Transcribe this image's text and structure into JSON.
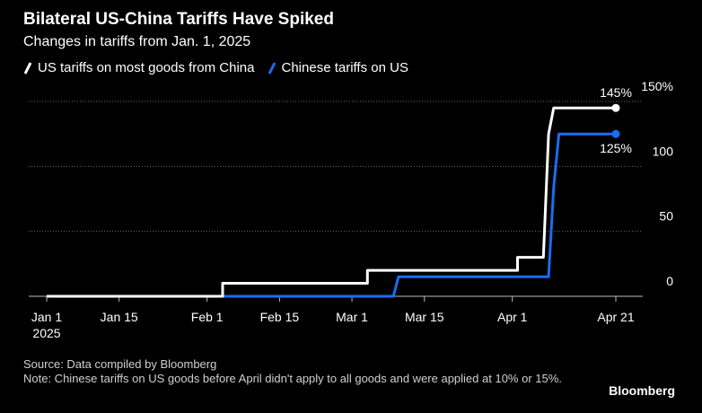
{
  "header": {
    "title": "Bilateral US-China Tariffs Have Spiked",
    "subtitle": "Changes in tariffs from Jan. 1, 2025"
  },
  "footer": {
    "source": "Source: Data compiled by Bloomberg",
    "note": "Note: Chinese tariffs on US goods before April didn't apply to all goods and were applied at 10% or 15%.",
    "brand": "Bloomberg"
  },
  "chart_data": {
    "type": "line",
    "title": "Bilateral US-China Tariffs Have Spiked",
    "subtitle": "Changes in tariffs from Jan. 1, 2025",
    "y_ticks": [
      {
        "value": 150,
        "label": "150%"
      },
      {
        "value": 100,
        "label": "100"
      },
      {
        "value": 50,
        "label": "50"
      },
      {
        "value": 0,
        "label": "0"
      }
    ],
    "x_ticks": [
      {
        "date": "2025-01-01",
        "label": "Jan 1",
        "sublabel": "2025"
      },
      {
        "date": "2025-01-15",
        "label": "Jan 15"
      },
      {
        "date": "2025-02-01",
        "label": "Feb 1"
      },
      {
        "date": "2025-02-15",
        "label": "Feb 15"
      },
      {
        "date": "2025-03-01",
        "label": "Mar 1"
      },
      {
        "date": "2025-03-15",
        "label": "Mar 15"
      },
      {
        "date": "2025-04-01",
        "label": "Apr 1"
      },
      {
        "date": "2025-04-21",
        "label": "Apr 21"
      }
    ],
    "x_range": [
      "2025-01-01",
      "2025-04-21"
    ],
    "ylim": [
      0,
      150
    ],
    "grid": true,
    "legend_position": "top-left",
    "series": [
      {
        "name": "US tariffs on most goods from China",
        "color": "#ffffff",
        "end_label": "145%",
        "points": [
          {
            "x": "2025-01-01",
            "y": 0
          },
          {
            "x": "2025-02-04",
            "y": 0
          },
          {
            "x": "2025-02-04",
            "y": 10
          },
          {
            "x": "2025-03-04",
            "y": 10
          },
          {
            "x": "2025-03-04",
            "y": 20
          },
          {
            "x": "2025-04-02",
            "y": 20
          },
          {
            "x": "2025-04-02",
            "y": 30
          },
          {
            "x": "2025-04-07",
            "y": 30
          },
          {
            "x": "2025-04-08",
            "y": 125
          },
          {
            "x": "2025-04-09",
            "y": 145
          },
          {
            "x": "2025-04-21",
            "y": 145
          }
        ]
      },
      {
        "name": "Chinese tariffs on US",
        "color": "#1c6cf0",
        "end_label": "125%",
        "points": [
          {
            "x": "2025-01-01",
            "y": 0
          },
          {
            "x": "2025-03-09",
            "y": 0
          },
          {
            "x": "2025-03-10",
            "y": 15
          },
          {
            "x": "2025-04-08",
            "y": 15
          },
          {
            "x": "2025-04-09",
            "y": 84
          },
          {
            "x": "2025-04-10",
            "y": 125
          },
          {
            "x": "2025-04-21",
            "y": 125
          }
        ]
      }
    ]
  }
}
